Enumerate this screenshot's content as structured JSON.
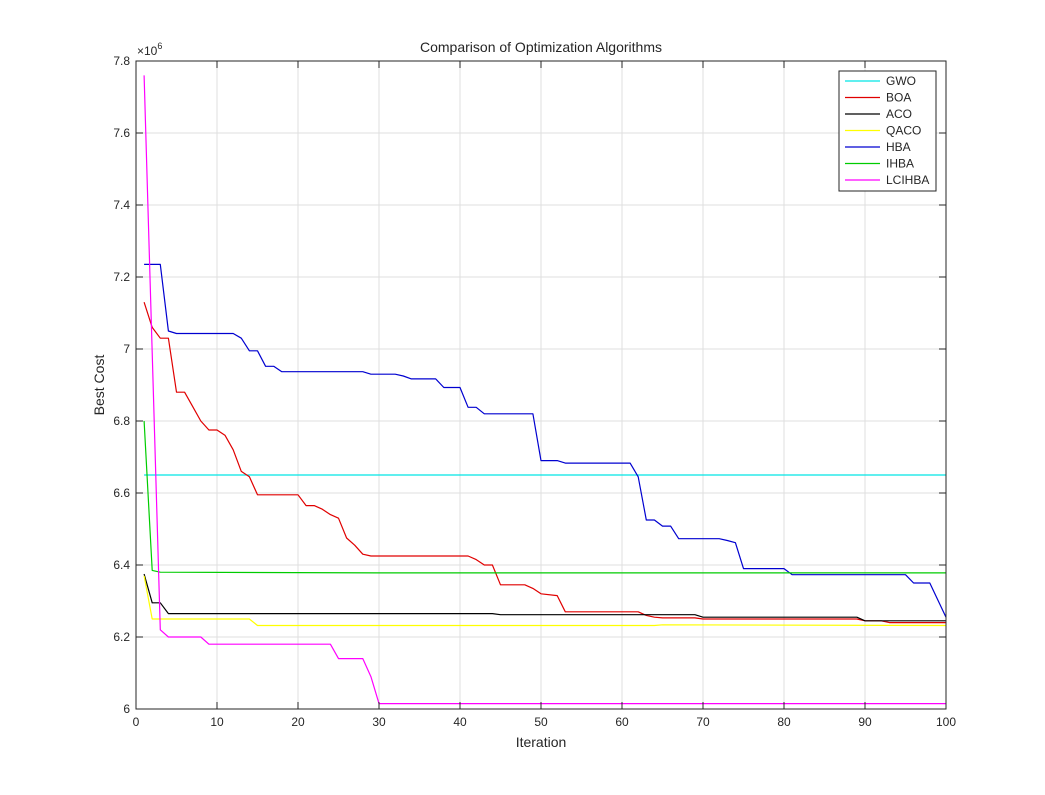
{
  "chart_data": {
    "type": "line",
    "title": "Comparison of Optimization Algorithms",
    "xlabel": "Iteration",
    "ylabel": "Best Cost",
    "y_multiplier_base": "×10",
    "y_multiplier_exp": "6",
    "xlim": [
      0,
      100
    ],
    "ylim": [
      6.0,
      7.8
    ],
    "xticks": [
      0,
      10,
      20,
      30,
      40,
      50,
      60,
      70,
      80,
      90,
      100
    ],
    "yticks": [
      6.0,
      6.2,
      6.4,
      6.6,
      6.8,
      7.0,
      7.2,
      7.4,
      7.6,
      7.8
    ],
    "ytick_labels": [
      "6",
      "6.2",
      "6.4",
      "6.6",
      "6.8",
      "7",
      "7.2",
      "7.4",
      "7.6",
      "7.8"
    ],
    "grid": true,
    "legend_position": "top-right",
    "series": [
      {
        "name": "GWO",
        "color": "#00e5e5",
        "points": [
          [
            1,
            6.65
          ],
          [
            100,
            6.65
          ]
        ]
      },
      {
        "name": "BOA",
        "color": "#e00000",
        "points": [
          [
            1,
            7.13
          ],
          [
            2,
            7.06
          ],
          [
            3,
            7.03
          ],
          [
            4,
            7.03
          ],
          [
            5,
            6.88
          ],
          [
            6,
            6.88
          ],
          [
            7,
            6.84
          ],
          [
            8,
            6.8
          ],
          [
            9,
            6.775
          ],
          [
            10,
            6.775
          ],
          [
            11,
            6.76
          ],
          [
            12,
            6.72
          ],
          [
            13,
            6.66
          ],
          [
            14,
            6.645
          ],
          [
            15,
            6.595
          ],
          [
            16,
            6.595
          ],
          [
            20,
            6.595
          ],
          [
            21,
            6.565
          ],
          [
            22,
            6.565
          ],
          [
            23,
            6.555
          ],
          [
            24,
            6.54
          ],
          [
            25,
            6.53
          ],
          [
            26,
            6.475
          ],
          [
            27,
            6.455
          ],
          [
            28,
            6.43
          ],
          [
            29,
            6.425
          ],
          [
            40,
            6.425
          ],
          [
            41,
            6.425
          ],
          [
            42,
            6.415
          ],
          [
            43,
            6.4
          ],
          [
            44,
            6.4
          ],
          [
            45,
            6.345
          ],
          [
            48,
            6.345
          ],
          [
            49,
            6.335
          ],
          [
            50,
            6.32
          ],
          [
            52,
            6.315
          ],
          [
            53,
            6.27
          ],
          [
            62,
            6.27
          ],
          [
            63,
            6.26
          ],
          [
            64,
            6.255
          ],
          [
            65,
            6.253
          ],
          [
            69,
            6.253
          ],
          [
            70,
            6.25
          ],
          [
            89,
            6.25
          ],
          [
            90,
            6.245
          ],
          [
            92,
            6.245
          ],
          [
            93,
            6.24
          ],
          [
            100,
            6.24
          ]
        ]
      },
      {
        "name": "ACO",
        "color": "#000000",
        "points": [
          [
            1,
            6.375
          ],
          [
            2,
            6.295
          ],
          [
            3,
            6.295
          ],
          [
            4,
            6.265
          ],
          [
            44,
            6.265
          ],
          [
            45,
            6.262
          ],
          [
            69,
            6.262
          ],
          [
            70,
            6.255
          ],
          [
            89,
            6.255
          ],
          [
            90,
            6.245
          ],
          [
            100,
            6.245
          ]
        ]
      },
      {
        "name": "QACO",
        "color": "#ffff00",
        "points": [
          [
            1,
            6.37
          ],
          [
            2,
            6.25
          ],
          [
            14,
            6.25
          ],
          [
            15,
            6.232
          ],
          [
            64,
            6.232
          ],
          [
            65,
            6.234
          ],
          [
            100,
            6.232
          ]
        ]
      },
      {
        "name": "HBA",
        "color": "#0000d0",
        "points": [
          [
            1,
            7.235
          ],
          [
            3,
            7.235
          ],
          [
            4,
            7.05
          ],
          [
            5,
            7.043
          ],
          [
            12,
            7.043
          ],
          [
            13,
            7.03
          ],
          [
            14,
            6.995
          ],
          [
            15,
            6.995
          ],
          [
            16,
            6.952
          ],
          [
            17,
            6.952
          ],
          [
            18,
            6.937
          ],
          [
            28,
            6.937
          ],
          [
            29,
            6.93
          ],
          [
            32,
            6.93
          ],
          [
            33,
            6.925
          ],
          [
            34,
            6.917
          ],
          [
            37,
            6.917
          ],
          [
            38,
            6.893
          ],
          [
            40,
            6.893
          ],
          [
            41,
            6.838
          ],
          [
            42,
            6.838
          ],
          [
            43,
            6.82
          ],
          [
            49,
            6.82
          ],
          [
            50,
            6.69
          ],
          [
            52,
            6.69
          ],
          [
            53,
            6.683
          ],
          [
            61,
            6.683
          ],
          [
            62,
            6.645
          ],
          [
            63,
            6.525
          ],
          [
            64,
            6.525
          ],
          [
            65,
            6.508
          ],
          [
            66,
            6.508
          ],
          [
            67,
            6.473
          ],
          [
            72,
            6.473
          ],
          [
            73,
            6.468
          ],
          [
            74,
            6.462
          ],
          [
            75,
            6.39
          ],
          [
            80,
            6.39
          ],
          [
            81,
            6.373
          ],
          [
            95,
            6.373
          ],
          [
            96,
            6.35
          ],
          [
            98,
            6.35
          ],
          [
            100,
            6.255
          ]
        ]
      },
      {
        "name": "IHBA",
        "color": "#00cc00",
        "points": [
          [
            1,
            6.8
          ],
          [
            2,
            6.385
          ],
          [
            3,
            6.38
          ],
          [
            30,
            6.378
          ],
          [
            100,
            6.378
          ]
        ]
      },
      {
        "name": "LCIHBA",
        "color": "#ff00ff",
        "points": [
          [
            1,
            7.76
          ],
          [
            2,
            6.99
          ],
          [
            3,
            6.22
          ],
          [
            4,
            6.2
          ],
          [
            8,
            6.2
          ],
          [
            9,
            6.18
          ],
          [
            24,
            6.18
          ],
          [
            25,
            6.14
          ],
          [
            28,
            6.14
          ],
          [
            29,
            6.09
          ],
          [
            30,
            6.015
          ],
          [
            100,
            6.015
          ]
        ]
      }
    ]
  }
}
